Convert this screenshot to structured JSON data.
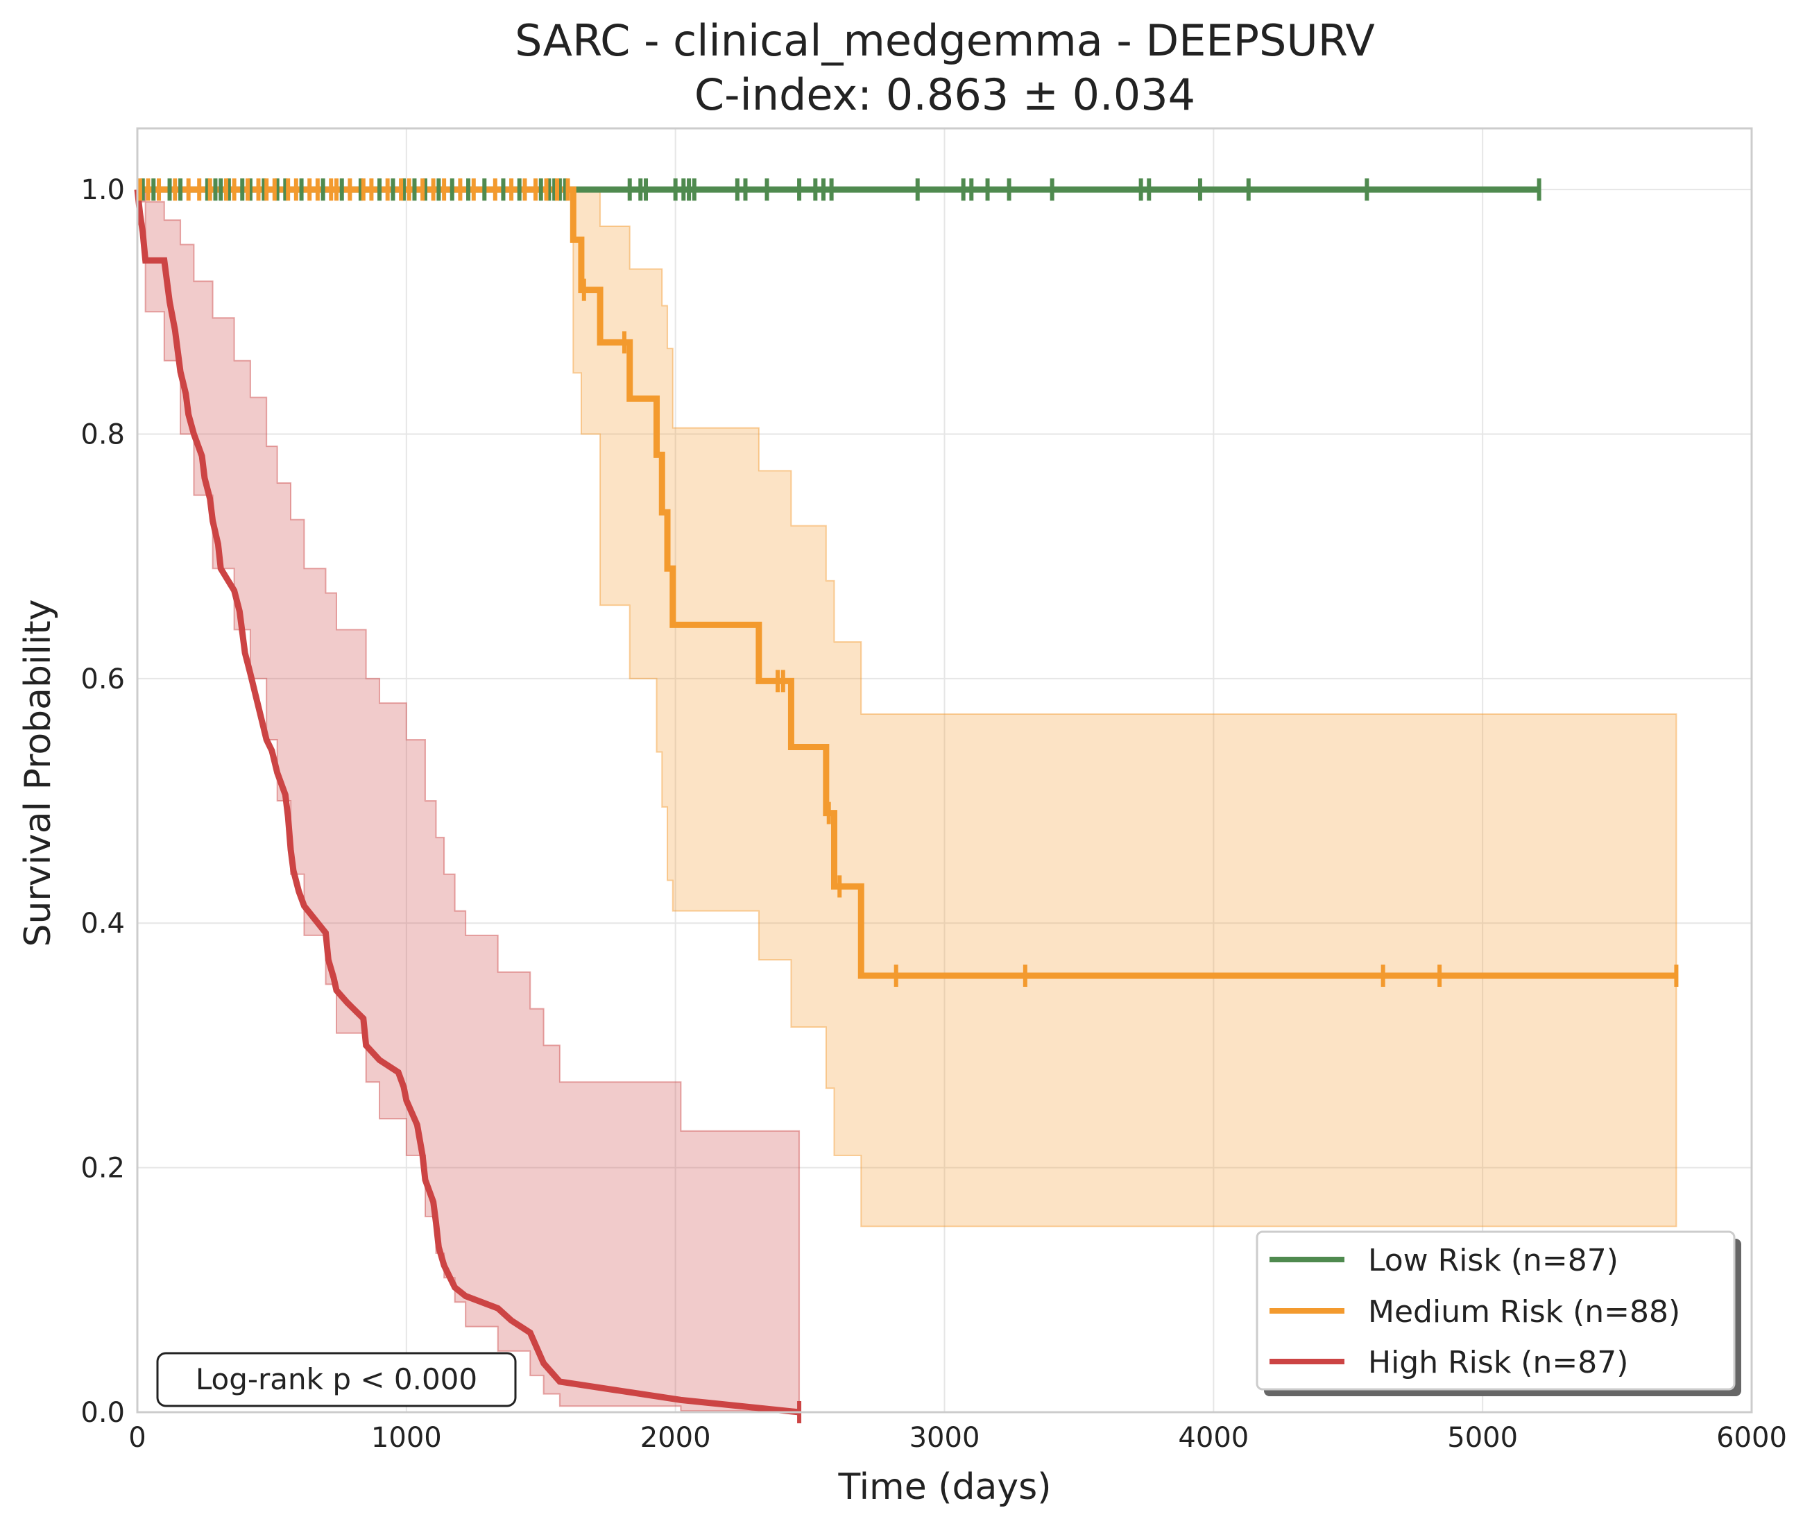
{
  "chart_data": {
    "type": "line",
    "subtype": "kaplan-meier",
    "title": "SARC - clinical_medgemma - DEEPSURV",
    "subtitle": "C-index: 0.863 ± 0.034",
    "xlabel": "Time (days)",
    "ylabel": "Survival Probability",
    "xlim": [
      0,
      6000
    ],
    "ylim": [
      0,
      1.05
    ],
    "xticks": [
      0,
      1000,
      2000,
      3000,
      4000,
      5000,
      6000
    ],
    "xtick_labels": [
      "0",
      "1000",
      "2000",
      "3000",
      "4000",
      "5000",
      "6000"
    ],
    "yticks": [
      0.0,
      0.2,
      0.4,
      0.6,
      0.8,
      1.0
    ],
    "ytick_labels": [
      "0.0",
      "0.2",
      "0.4",
      "0.6",
      "0.8",
      "1.0"
    ],
    "grid": true,
    "legend_position": "lower-right",
    "annotation": "Log-rank p < 0.000",
    "series": [
      {
        "name": "Low Risk (n=87)",
        "color": "#4f8a4f",
        "steps": [
          [
            0,
            1.0
          ],
          [
            5210,
            1.0
          ]
        ],
        "ci": [],
        "censor_times": [
          20,
          60,
          120,
          160,
          260,
          290,
          310,
          340,
          390,
          420,
          470,
          520,
          550,
          610,
          690,
          760,
          830,
          900,
          950,
          990,
          1030,
          1070,
          1120,
          1170,
          1230,
          1290,
          1360,
          1420,
          1500,
          1530,
          1550,
          1570,
          1590,
          1830,
          1870,
          1890,
          2000,
          2030,
          2050,
          2070,
          2230,
          2260,
          2340,
          2460,
          2520,
          2550,
          2580,
          2900,
          3070,
          3100,
          3160,
          3240,
          3400,
          3730,
          3760,
          3950,
          4130,
          4570,
          5210
        ]
      },
      {
        "name": "Medium Risk (n=88)",
        "color": "#f39a2e",
        "steps": [
          [
            0,
            1.0
          ],
          [
            1620,
            1.0
          ],
          [
            1620,
            0.959
          ],
          [
            1650,
            0.959
          ],
          [
            1650,
            0.918
          ],
          [
            1720,
            0.918
          ],
          [
            1720,
            0.875
          ],
          [
            1830,
            0.875
          ],
          [
            1830,
            0.829
          ],
          [
            1930,
            0.829
          ],
          [
            1930,
            0.783
          ],
          [
            1950,
            0.783
          ],
          [
            1950,
            0.736
          ],
          [
            1970,
            0.736
          ],
          [
            1970,
            0.69
          ],
          [
            1990,
            0.69
          ],
          [
            1990,
            0.644
          ],
          [
            2310,
            0.644
          ],
          [
            2310,
            0.598
          ],
          [
            2430,
            0.598
          ],
          [
            2430,
            0.544
          ],
          [
            2560,
            0.544
          ],
          [
            2560,
            0.49
          ],
          [
            2590,
            0.49
          ],
          [
            2590,
            0.43
          ],
          [
            2690,
            0.43
          ],
          [
            2690,
            0.357
          ],
          [
            5720,
            0.357
          ]
        ],
        "ci": [
          [
            0,
            1.0,
            1.0
          ],
          [
            1620,
            0.85,
            1.0
          ],
          [
            1650,
            0.8,
            1.0
          ],
          [
            1720,
            0.66,
            0.97
          ],
          [
            1830,
            0.6,
            0.935
          ],
          [
            1930,
            0.54,
            0.935
          ],
          [
            1950,
            0.495,
            0.905
          ],
          [
            1970,
            0.435,
            0.87
          ],
          [
            1990,
            0.41,
            0.805
          ],
          [
            2310,
            0.37,
            0.77
          ],
          [
            2430,
            0.315,
            0.725
          ],
          [
            2560,
            0.265,
            0.68
          ],
          [
            2590,
            0.21,
            0.63
          ],
          [
            2690,
            0.152,
            0.571
          ],
          [
            5720,
            0.152,
            0.571
          ]
        ],
        "censor_times": [
          10,
          40,
          80,
          140,
          190,
          230,
          270,
          330,
          360,
          410,
          450,
          480,
          510,
          560,
          590,
          640,
          670,
          720,
          740,
          790,
          840,
          870,
          930,
          980,
          1010,
          1060,
          1100,
          1140,
          1200,
          1250,
          1330,
          1390,
          1440,
          1480,
          1520,
          1560,
          1600
        ],
        "censor_times_after_drop": [
          [
            1660,
            0.918
          ],
          [
            1810,
            0.875
          ],
          [
            2380,
            0.598
          ],
          [
            2400,
            0.598
          ],
          [
            2570,
            0.49
          ],
          [
            2610,
            0.43
          ],
          [
            2820,
            0.357
          ],
          [
            3300,
            0.357
          ],
          [
            4630,
            0.357
          ],
          [
            4840,
            0.357
          ],
          [
            5720,
            0.357
          ]
        ]
      },
      {
        "name": "High Risk (n=87)",
        "color": "#cc4444",
        "steps": [
          [
            0,
            1.0
          ],
          [
            10,
            0.98
          ],
          [
            20,
            0.965
          ],
          [
            30,
            0.942
          ],
          [
            100,
            0.942
          ],
          [
            110,
            0.925
          ],
          [
            120,
            0.908
          ],
          [
            140,
            0.885
          ],
          [
            150,
            0.868
          ],
          [
            160,
            0.851
          ],
          [
            180,
            0.833
          ],
          [
            190,
            0.816
          ],
          [
            210,
            0.8
          ],
          [
            240,
            0.782
          ],
          [
            250,
            0.764
          ],
          [
            270,
            0.747
          ],
          [
            280,
            0.729
          ],
          [
            300,
            0.71
          ],
          [
            310,
            0.69
          ],
          [
            360,
            0.672
          ],
          [
            380,
            0.655
          ],
          [
            390,
            0.638
          ],
          [
            400,
            0.621
          ],
          [
            420,
            0.604
          ],
          [
            440,
            0.586
          ],
          [
            460,
            0.568
          ],
          [
            480,
            0.55
          ],
          [
            500,
            0.541
          ],
          [
            520,
            0.523
          ],
          [
            550,
            0.505
          ],
          [
            560,
            0.487
          ],
          [
            570,
            0.46
          ],
          [
            580,
            0.443
          ],
          [
            600,
            0.426
          ],
          [
            620,
            0.414
          ],
          [
            700,
            0.392
          ],
          [
            710,
            0.37
          ],
          [
            730,
            0.355
          ],
          [
            740,
            0.345
          ],
          [
            780,
            0.335
          ],
          [
            840,
            0.322
          ],
          [
            850,
            0.3
          ],
          [
            900,
            0.288
          ],
          [
            970,
            0.278
          ],
          [
            990,
            0.266
          ],
          [
            1000,
            0.255
          ],
          [
            1040,
            0.235
          ],
          [
            1060,
            0.21
          ],
          [
            1070,
            0.19
          ],
          [
            1100,
            0.172
          ],
          [
            1110,
            0.155
          ],
          [
            1120,
            0.135
          ],
          [
            1140,
            0.12
          ],
          [
            1180,
            0.102
          ],
          [
            1220,
            0.095
          ],
          [
            1340,
            0.085
          ],
          [
            1390,
            0.075
          ],
          [
            1460,
            0.065
          ],
          [
            1490,
            0.05
          ],
          [
            1510,
            0.04
          ],
          [
            1570,
            0.025
          ],
          [
            2020,
            0.01
          ],
          [
            2460,
            0.0
          ]
        ],
        "ci": [
          [
            0,
            0.99,
            1.0
          ],
          [
            30,
            0.9,
            0.99
          ],
          [
            100,
            0.86,
            0.975
          ],
          [
            160,
            0.8,
            0.955
          ],
          [
            210,
            0.75,
            0.925
          ],
          [
            280,
            0.69,
            0.895
          ],
          [
            360,
            0.64,
            0.86
          ],
          [
            420,
            0.6,
            0.83
          ],
          [
            480,
            0.55,
            0.79
          ],
          [
            520,
            0.5,
            0.76
          ],
          [
            570,
            0.44,
            0.73
          ],
          [
            620,
            0.39,
            0.69
          ],
          [
            700,
            0.35,
            0.67
          ],
          [
            740,
            0.31,
            0.64
          ],
          [
            850,
            0.27,
            0.6
          ],
          [
            900,
            0.24,
            0.58
          ],
          [
            1000,
            0.21,
            0.55
          ],
          [
            1070,
            0.16,
            0.5
          ],
          [
            1110,
            0.13,
            0.47
          ],
          [
            1140,
            0.11,
            0.44
          ],
          [
            1180,
            0.09,
            0.41
          ],
          [
            1220,
            0.07,
            0.39
          ],
          [
            1340,
            0.05,
            0.36
          ],
          [
            1460,
            0.03,
            0.33
          ],
          [
            1510,
            0.015,
            0.3
          ],
          [
            1570,
            0.005,
            0.27
          ],
          [
            2020,
            0.001,
            0.23
          ],
          [
            2460,
            0.0,
            0.19
          ]
        ],
        "censor_times_after_drop": [
          [
            2460,
            0.0
          ]
        ]
      }
    ]
  }
}
